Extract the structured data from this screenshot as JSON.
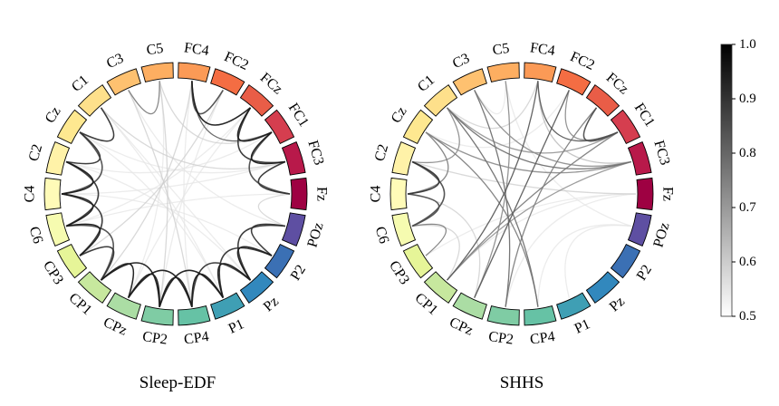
{
  "figure": {
    "channels": [
      "Fz",
      "FC3",
      "FC1",
      "FCz",
      "FC2",
      "FC4",
      "C5",
      "C3",
      "C1",
      "Cz",
      "C2",
      "C4",
      "C6",
      "CP3",
      "CP1",
      "CPz",
      "CP2",
      "CP4",
      "P1",
      "Pz",
      "P2",
      "POz"
    ],
    "segment_colors": [
      "#9e0142",
      "#b8194a",
      "#d53e4f",
      "#e95d47",
      "#f46d43",
      "#fb9a56",
      "#fdae61",
      "#fec170",
      "#fee08b",
      "#fee890",
      "#fff2a8",
      "#fffbb8",
      "#f6fbb0",
      "#e6f598",
      "#c7e89e",
      "#abdda4",
      "#7fcca4",
      "#66c2a5",
      "#3f9fb4",
      "#3288bd",
      "#3b70b4",
      "#5e4fa2"
    ],
    "panels": [
      {
        "title": "Sleep-EDF",
        "connections": [
          [
            "CP1",
            "CPz",
            0.95
          ],
          [
            "CP1",
            "CP2",
            0.95
          ],
          [
            "CPz",
            "CP2",
            0.95
          ],
          [
            "CPz",
            "CP4",
            0.95
          ],
          [
            "CP2",
            "CP4",
            0.95
          ],
          [
            "CP2",
            "P1",
            0.95
          ],
          [
            "CP4",
            "P1",
            0.95
          ],
          [
            "CP4",
            "Pz",
            0.9
          ],
          [
            "P1",
            "Pz",
            0.95
          ],
          [
            "P1",
            "P2",
            0.9
          ],
          [
            "Pz",
            "P2",
            0.95
          ],
          [
            "Pz",
            "POz",
            0.9
          ],
          [
            "P2",
            "POz",
            0.9
          ],
          [
            "CP3",
            "C6",
            0.95
          ],
          [
            "C6",
            "C4",
            0.95
          ],
          [
            "C4",
            "C2",
            0.95
          ],
          [
            "C2",
            "Cz",
            0.9
          ],
          [
            "Cz",
            "C1",
            0.9
          ],
          [
            "C6",
            "C2",
            0.9
          ],
          [
            "C4",
            "Cz",
            0.85
          ],
          [
            "CP3",
            "C4",
            0.9
          ],
          [
            "CP3",
            "CP1",
            0.9
          ],
          [
            "CP1",
            "C6",
            0.85
          ],
          [
            "Fz",
            "FC3",
            0.9
          ],
          [
            "FC3",
            "FC1",
            0.95
          ],
          [
            "FC1",
            "FCz",
            0.95
          ],
          [
            "FCz",
            "FC4",
            0.95
          ],
          [
            "FC3",
            "FCz",
            0.9
          ],
          [
            "Fz",
            "FC1",
            0.85
          ],
          [
            "FC2",
            "FC4",
            0.85
          ],
          [
            "FC1",
            "FC4",
            0.8
          ],
          [
            "C3",
            "C5",
            0.75
          ],
          [
            "Fz",
            "POz",
            0.6
          ],
          [
            "C3",
            "CP4",
            0.6
          ],
          [
            "C1",
            "P1",
            0.55
          ],
          [
            "C5",
            "CP2",
            0.6
          ],
          [
            "FC4",
            "CP1",
            0.6
          ],
          [
            "FC2",
            "CP3",
            0.6
          ],
          [
            "FCz",
            "C6",
            0.55
          ],
          [
            "FC1",
            "C2",
            0.55
          ],
          [
            "FC3",
            "Cz",
            0.55
          ],
          [
            "FC3",
            "C4",
            0.55
          ],
          [
            "Fz",
            "C6",
            0.55
          ],
          [
            "C1",
            "Pz",
            0.55
          ],
          [
            "Cz",
            "P1",
            0.55
          ],
          [
            "C2",
            "Pz",
            0.55
          ],
          [
            "C4",
            "P2",
            0.55
          ],
          [
            "FC2",
            "CP2",
            0.55
          ],
          [
            "FC4",
            "CP4",
            0.55
          ],
          [
            "C5",
            "CPz",
            0.55
          ],
          [
            "FCz",
            "CPz",
            0.55
          ],
          [
            "C3",
            "POz",
            0.55
          ],
          [
            "C1",
            "FC3",
            0.6
          ],
          [
            "C5",
            "FC1",
            0.6
          ]
        ]
      },
      {
        "title": "SHHS",
        "connections": [
          [
            "CP1",
            "FC4",
            0.82
          ],
          [
            "CPz",
            "FC2",
            0.82
          ],
          [
            "CP2",
            "C3",
            0.78
          ],
          [
            "CP4",
            "C1",
            0.78
          ],
          [
            "CP1",
            "FC1",
            0.75
          ],
          [
            "CP2",
            "FCz",
            0.75
          ],
          [
            "CPz",
            "C5",
            0.72
          ],
          [
            "CP4",
            "Cz",
            0.75
          ],
          [
            "CP1",
            "FC3",
            0.7
          ],
          [
            "C1",
            "FC3",
            0.78
          ],
          [
            "C3",
            "FC3",
            0.72
          ],
          [
            "Cz",
            "FC3",
            0.72
          ],
          [
            "C1",
            "FC1",
            0.7
          ],
          [
            "C4",
            "C2",
            0.9
          ],
          [
            "C4",
            "C6",
            0.85
          ],
          [
            "C2",
            "C6",
            0.85
          ],
          [
            "C4",
            "Cz",
            0.75
          ],
          [
            "C2",
            "C1",
            0.72
          ],
          [
            "C6",
            "CP3",
            0.75
          ],
          [
            "FC4",
            "FC1",
            0.82
          ],
          [
            "FCz",
            "FC1",
            0.85
          ],
          [
            "FC2",
            "FC1",
            0.72
          ],
          [
            "FC4",
            "FC3",
            0.65
          ],
          [
            "CP1",
            "C6",
            0.6
          ],
          [
            "CPz",
            "C4",
            0.6
          ],
          [
            "CP1",
            "Fz",
            0.55
          ],
          [
            "CP2",
            "Fz",
            0.55
          ],
          [
            "CP4",
            "POz",
            0.55
          ],
          [
            "P1",
            "POz",
            0.55
          ],
          [
            "CP3",
            "Fz",
            0.55
          ],
          [
            "C2",
            "Fz",
            0.6
          ],
          [
            "C1",
            "FC4",
            0.6
          ],
          [
            "Cz",
            "FC2",
            0.55
          ],
          [
            "C3",
            "C5",
            0.55
          ],
          [
            "C5",
            "POz",
            0.55
          ]
        ]
      }
    ],
    "colorbar": {
      "min": 0.5,
      "max": 1.0,
      "ticks": [
        "0.5",
        "0.6",
        "0.7",
        "0.8",
        "0.9",
        "1.0"
      ]
    }
  }
}
